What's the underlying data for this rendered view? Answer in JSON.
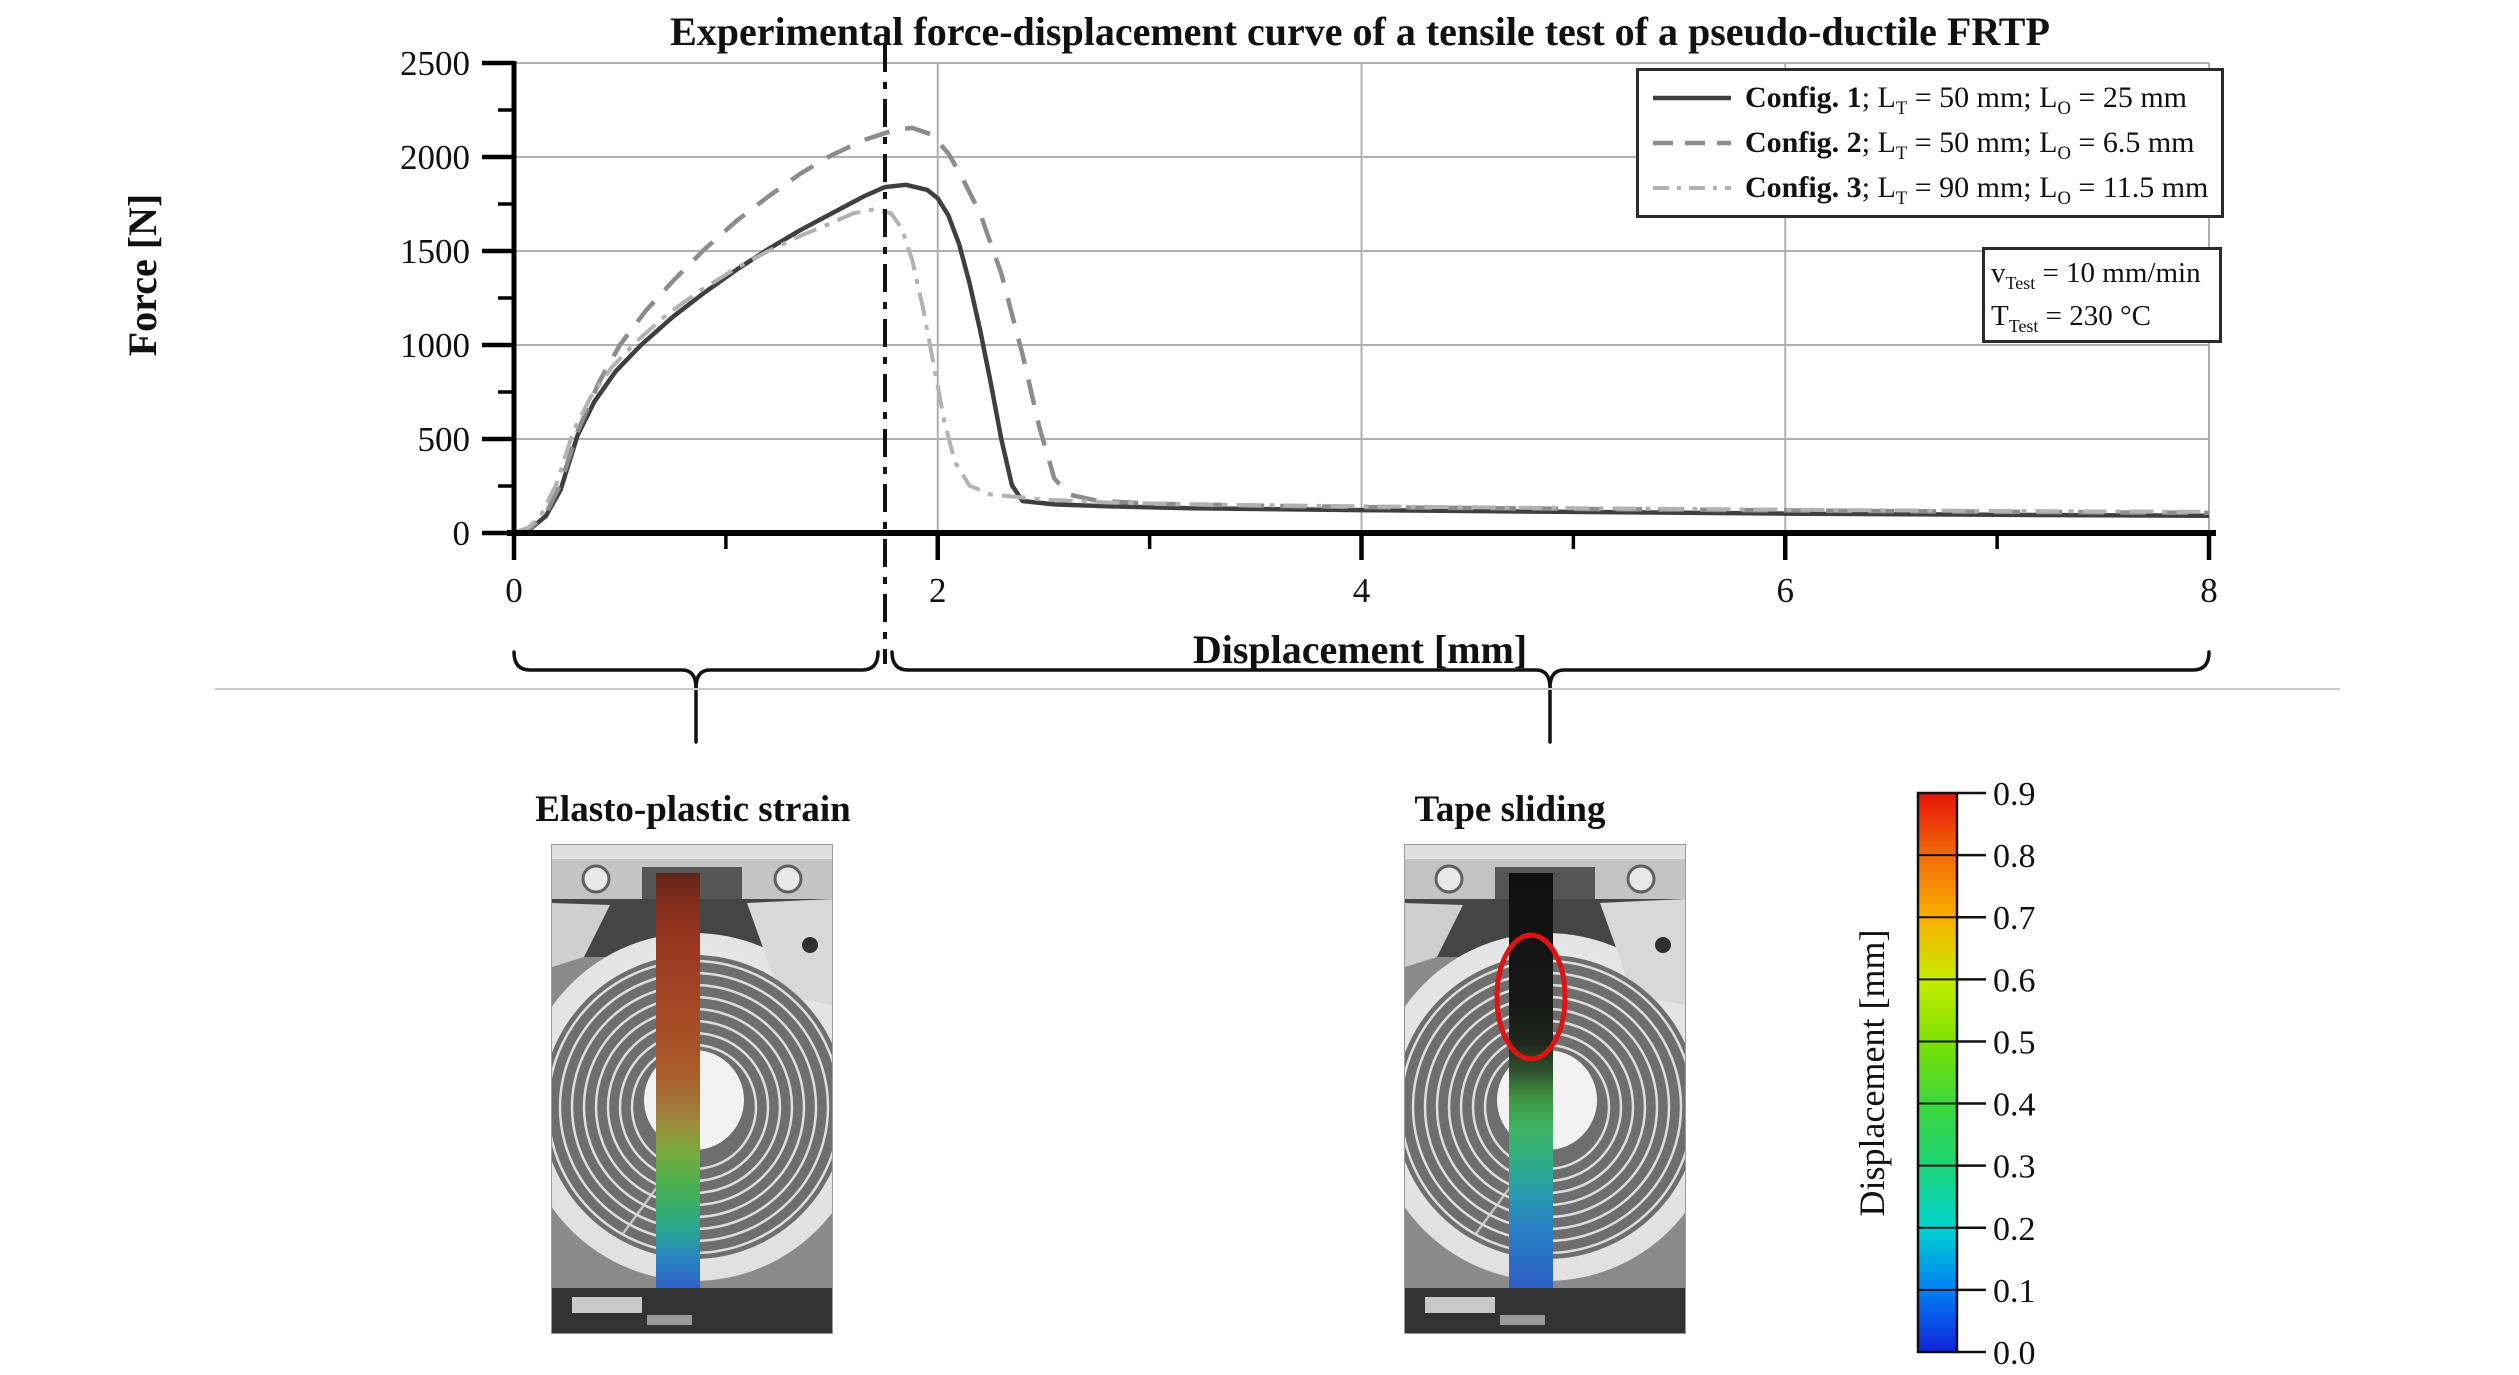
{
  "title": "Experimental force-displacement curve of a tensile test of a pseudo-ductile FRTP",
  "axes": {
    "x_label": "Displacement [mm]",
    "y_label": "Force [N]",
    "x_ticks": [
      0,
      2,
      4,
      6,
      8
    ],
    "x_minor_ticks": [
      1,
      3,
      5,
      7
    ],
    "y_ticks": [
      0,
      500,
      1000,
      1500,
      2000,
      2500
    ],
    "y_minor_ticks": [
      250,
      750,
      1250,
      1750,
      2250
    ]
  },
  "chart_data": {
    "type": "line",
    "title": "Experimental force-displacement curve of a tensile test of a pseudo-ductile FRTP",
    "xlabel": "Displacement [mm]",
    "ylabel": "Force [N]",
    "xlim": [
      0,
      8
    ],
    "ylim": [
      0,
      2500
    ],
    "grid": true,
    "legend_position": "top-right",
    "phase_transition_x": 1.75,
    "series": [
      {
        "name": "Config. 1; LT = 50 mm; LO = 25 mm",
        "style": "solid",
        "color": "#3f3f3f",
        "points": [
          [
            0,
            0
          ],
          [
            0.08,
            25
          ],
          [
            0.15,
            90
          ],
          [
            0.22,
            230
          ],
          [
            0.3,
            520
          ],
          [
            0.38,
            700
          ],
          [
            0.48,
            860
          ],
          [
            0.6,
            1000
          ],
          [
            0.75,
            1150
          ],
          [
            0.9,
            1280
          ],
          [
            1.05,
            1400
          ],
          [
            1.2,
            1510
          ],
          [
            1.35,
            1610
          ],
          [
            1.5,
            1700
          ],
          [
            1.65,
            1790
          ],
          [
            1.75,
            1840
          ],
          [
            1.85,
            1852
          ],
          [
            1.95,
            1825
          ],
          [
            2.0,
            1780
          ],
          [
            2.05,
            1690
          ],
          [
            2.1,
            1540
          ],
          [
            2.15,
            1330
          ],
          [
            2.2,
            1080
          ],
          [
            2.25,
            800
          ],
          [
            2.3,
            500
          ],
          [
            2.35,
            255
          ],
          [
            2.4,
            170
          ],
          [
            2.55,
            152
          ],
          [
            2.8,
            142
          ],
          [
            3.2,
            132
          ],
          [
            4,
            122
          ],
          [
            5,
            112
          ],
          [
            6,
            103
          ],
          [
            7,
            97
          ],
          [
            8,
            92
          ]
        ]
      },
      {
        "name": "Config. 2; LT = 50 mm; LO = 6.5 mm",
        "style": "dashed",
        "color": "#8c8c8c",
        "points": [
          [
            0,
            0
          ],
          [
            0.08,
            30
          ],
          [
            0.15,
            100
          ],
          [
            0.22,
            260
          ],
          [
            0.3,
            540
          ],
          [
            0.4,
            800
          ],
          [
            0.5,
            1000
          ],
          [
            0.62,
            1180
          ],
          [
            0.75,
            1340
          ],
          [
            0.9,
            1510
          ],
          [
            1.05,
            1660
          ],
          [
            1.2,
            1790
          ],
          [
            1.35,
            1910
          ],
          [
            1.5,
            2010
          ],
          [
            1.65,
            2090
          ],
          [
            1.8,
            2145
          ],
          [
            1.88,
            2155
          ],
          [
            1.97,
            2120
          ],
          [
            2.05,
            2020
          ],
          [
            2.12,
            1880
          ],
          [
            2.2,
            1700
          ],
          [
            2.3,
            1380
          ],
          [
            2.4,
            950
          ],
          [
            2.48,
            560
          ],
          [
            2.55,
            290
          ],
          [
            2.62,
            205
          ],
          [
            2.75,
            172
          ],
          [
            3.0,
            156
          ],
          [
            3.5,
            146
          ],
          [
            4,
            138
          ],
          [
            5,
            128
          ],
          [
            6,
            120
          ],
          [
            7,
            113
          ],
          [
            8,
            107
          ]
        ]
      },
      {
        "name": "Config. 3; LT = 90 mm; LO = 11.5 mm",
        "style": "dashdot",
        "color": "#b2b2b2",
        "points": [
          [
            0,
            0
          ],
          [
            0.07,
            30
          ],
          [
            0.13,
            100
          ],
          [
            0.2,
            260
          ],
          [
            0.28,
            540
          ],
          [
            0.36,
            720
          ],
          [
            0.46,
            880
          ],
          [
            0.58,
            1020
          ],
          [
            0.72,
            1160
          ],
          [
            0.88,
            1290
          ],
          [
            1.05,
            1410
          ],
          [
            1.2,
            1500
          ],
          [
            1.35,
            1580
          ],
          [
            1.5,
            1650
          ],
          [
            1.6,
            1700
          ],
          [
            1.7,
            1722
          ],
          [
            1.78,
            1700
          ],
          [
            1.83,
            1620
          ],
          [
            1.88,
            1450
          ],
          [
            1.93,
            1200
          ],
          [
            1.98,
            900
          ],
          [
            2.03,
            600
          ],
          [
            2.08,
            380
          ],
          [
            2.15,
            252
          ],
          [
            2.25,
            205
          ],
          [
            2.5,
            178
          ],
          [
            2.8,
            162
          ],
          [
            3.2,
            152
          ],
          [
            4,
            142
          ],
          [
            5,
            132
          ],
          [
            6,
            124
          ],
          [
            7,
            117
          ],
          [
            8,
            112
          ]
        ]
      }
    ]
  },
  "legend": {
    "items": [
      {
        "name": "Config. 1",
        "s1": "; L",
        "sub1": "T",
        "s2": " = 50 mm; L",
        "sub2": "O",
        "s3": " = 25 mm"
      },
      {
        "name": "Config. 2",
        "s1": "; L",
        "sub1": "T",
        "s2": " = 50 mm; L",
        "sub2": "O",
        "s3": " = 6.5 mm"
      },
      {
        "name": "Config. 3",
        "s1": "; L",
        "sub1": "T",
        "s2": " = 90 mm; L",
        "sub2": "O",
        "s3": " = 11.5 mm"
      }
    ]
  },
  "info_box": {
    "rows": [
      {
        "main": "v",
        "sub": "Test",
        "rest": " = 10 mm/min"
      },
      {
        "main": "T",
        "sub": "Test",
        "rest": " = 230 °C"
      }
    ]
  },
  "sections": [
    {
      "label": "Elasto-plastic strain"
    },
    {
      "label": "Tape sliding"
    }
  ],
  "colorbar": {
    "label": "Displacement [mm]",
    "ticks": [
      "0.9",
      "0.8",
      "0.7",
      "0.6",
      "0.5",
      "0.4",
      "0.3",
      "0.2",
      "0.1",
      "0.0"
    ],
    "stops": [
      {
        "v": 0.0,
        "c": "#1022dc"
      },
      {
        "v": 0.1,
        "c": "#0080f2"
      },
      {
        "v": 0.2,
        "c": "#00d4d0"
      },
      {
        "v": 0.3,
        "c": "#1ed476"
      },
      {
        "v": 0.4,
        "c": "#3cd83c"
      },
      {
        "v": 0.5,
        "c": "#7ce000"
      },
      {
        "v": 0.6,
        "c": "#c8ec00"
      },
      {
        "v": 0.7,
        "c": "#faae00"
      },
      {
        "v": 0.8,
        "c": "#f26a0a"
      },
      {
        "v": 0.9,
        "c": "#e81408"
      }
    ]
  }
}
